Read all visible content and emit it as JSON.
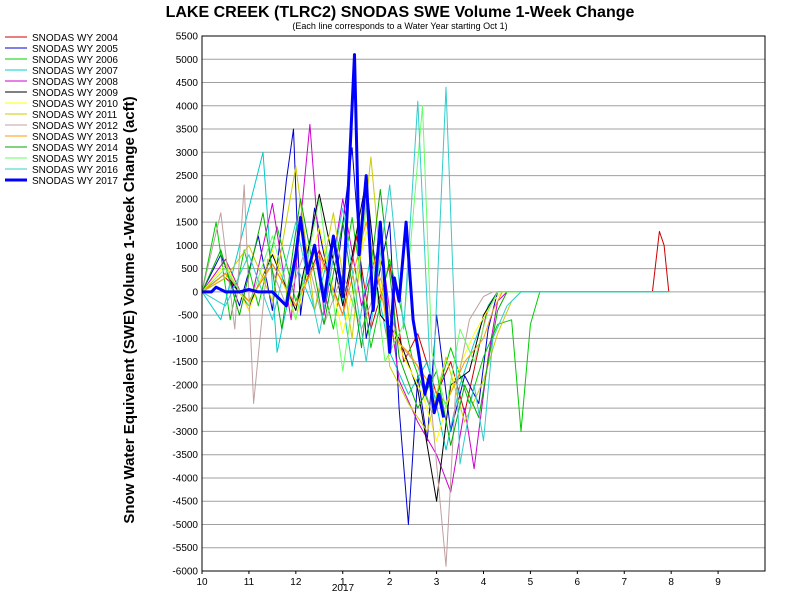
{
  "chart_data": {
    "type": "line",
    "title": "LAKE CREEK (TLRC2) SNODAS SWE Volume 1-Week Change",
    "subtitle": "(Each line corresponds to a Water Year starting Oct 1)",
    "ylabel": "Snow Water Equivalent (SWE) Volume 1-Week Change (acft)",
    "xlabel": "",
    "x_year_label": "2017",
    "ylim": [
      -6000,
      5500
    ],
    "yticks": [
      5500,
      5000,
      4500,
      4000,
      3500,
      3000,
      2500,
      2000,
      1500,
      1000,
      500,
      0,
      -500,
      -1000,
      -1500,
      -2000,
      -2500,
      -3000,
      -3500,
      -4000,
      -4500,
      -5000,
      -5500,
      -6000
    ],
    "x_tick_labels": [
      "10",
      "11",
      "12",
      "1",
      "2",
      "3",
      "4",
      "5",
      "6",
      "7",
      "8",
      "9"
    ],
    "grid": "horizontal",
    "legend_position": "left",
    "series": [
      {
        "name": "SNODAS WY 2004",
        "color": "#cc0000",
        "points": [
          [
            0,
            0
          ],
          [
            0.5,
            300
          ],
          [
            1,
            -200
          ],
          [
            1.5,
            600
          ],
          [
            2,
            -300
          ],
          [
            2.5,
            900
          ],
          [
            3,
            -500
          ],
          [
            3.3,
            1200
          ],
          [
            3.6,
            -800
          ],
          [
            4,
            600
          ],
          [
            4.3,
            -1500
          ],
          [
            4.6,
            -900
          ],
          [
            5,
            -2200
          ],
          [
            5.3,
            -1500
          ],
          [
            5.6,
            -2600
          ],
          [
            5.9,
            -1200
          ],
          [
            6.1,
            -300
          ],
          [
            6.3,
            0
          ],
          [
            7.5,
            0
          ],
          [
            9.6,
            0
          ],
          [
            9.75,
            1300
          ],
          [
            9.85,
            1000
          ],
          [
            9.95,
            0
          ]
        ]
      },
      {
        "name": "SNODAS WY 2005",
        "color": "#0000cc",
        "points": [
          [
            0,
            0
          ],
          [
            0.4,
            800
          ],
          [
            0.8,
            -300
          ],
          [
            1.2,
            1200
          ],
          [
            1.5,
            -400
          ],
          [
            1.8,
            2400
          ],
          [
            1.95,
            3500
          ],
          [
            2.1,
            -500
          ],
          [
            2.4,
            1800
          ],
          [
            2.8,
            -200
          ],
          [
            3.2,
            3100
          ],
          [
            3.5,
            -1000
          ],
          [
            4,
            1500
          ],
          [
            4.2,
            -2500
          ],
          [
            4.4,
            -5000
          ],
          [
            4.6,
            -1800
          ],
          [
            4.8,
            -3200
          ],
          [
            5,
            -500
          ],
          [
            5.3,
            -3000
          ],
          [
            5.6,
            -1800
          ],
          [
            5.9,
            -2400
          ],
          [
            6.1,
            -800
          ],
          [
            6.3,
            0
          ],
          [
            9.95,
            0
          ]
        ]
      },
      {
        "name": "SNODAS WY 2006",
        "color": "#00cc00",
        "points": [
          [
            0,
            0
          ],
          [
            0.3,
            1500
          ],
          [
            0.6,
            -600
          ],
          [
            0.9,
            900
          ],
          [
            1.2,
            -300
          ],
          [
            1.6,
            1400
          ],
          [
            2,
            -200
          ],
          [
            2.4,
            900
          ],
          [
            2.8,
            -800
          ],
          [
            3.2,
            1600
          ],
          [
            3.6,
            -1200
          ],
          [
            4,
            700
          ],
          [
            4.5,
            -1500
          ],
          [
            4.9,
            -2600
          ],
          [
            5.3,
            -1200
          ],
          [
            5.7,
            -2400
          ],
          [
            6,
            -1400
          ],
          [
            6.3,
            -700
          ],
          [
            6.6,
            -600
          ],
          [
            6.8,
            -3000
          ],
          [
            7,
            -700
          ],
          [
            7.2,
            0
          ],
          [
            9.95,
            0
          ]
        ]
      },
      {
        "name": "SNODAS WY 2007",
        "color": "#00cccc",
        "points": [
          [
            0,
            0
          ],
          [
            0.4,
            -600
          ],
          [
            0.8,
            1000
          ],
          [
            1.3,
            3000
          ],
          [
            1.6,
            -1300
          ],
          [
            2,
            600
          ],
          [
            2.4,
            -400
          ],
          [
            2.8,
            1200
          ],
          [
            3.2,
            -1600
          ],
          [
            3.6,
            800
          ],
          [
            4,
            -1300
          ],
          [
            4.4,
            -2200
          ],
          [
            4.8,
            -1500
          ],
          [
            5.2,
            -3400
          ],
          [
            5.5,
            -2000
          ],
          [
            5.8,
            -1100
          ],
          [
            6.1,
            -300
          ],
          [
            6.3,
            0
          ],
          [
            9.95,
            0
          ]
        ]
      },
      {
        "name": "SNODAS WY 2008",
        "color": "#cc00cc",
        "points": [
          [
            0,
            0
          ],
          [
            0.5,
            700
          ],
          [
            1,
            -400
          ],
          [
            1.5,
            1900
          ],
          [
            1.9,
            -600
          ],
          [
            2.3,
            3600
          ],
          [
            2.6,
            -500
          ],
          [
            3,
            2000
          ],
          [
            3.4,
            -300
          ],
          [
            3.8,
            1100
          ],
          [
            4.2,
            -1900
          ],
          [
            4.6,
            -2800
          ],
          [
            5,
            -3500
          ],
          [
            5.3,
            -4300
          ],
          [
            5.6,
            -2500
          ],
          [
            5.8,
            -3800
          ],
          [
            6.1,
            -1400
          ],
          [
            6.3,
            -200
          ],
          [
            6.5,
            0
          ],
          [
            9.95,
            0
          ]
        ]
      },
      {
        "name": "SNODAS WY 2009",
        "color": "#000000",
        "points": [
          [
            0,
            0
          ],
          [
            0.5,
            400
          ],
          [
            1,
            -300
          ],
          [
            1.5,
            800
          ],
          [
            2,
            -400
          ],
          [
            2.5,
            2100
          ],
          [
            3,
            -300
          ],
          [
            3.5,
            2400
          ],
          [
            3.8,
            -500
          ],
          [
            4.2,
            -1000
          ],
          [
            4.6,
            -2100
          ],
          [
            5,
            -4500
          ],
          [
            5.3,
            -2000
          ],
          [
            5.7,
            -1700
          ],
          [
            6,
            -500
          ],
          [
            6.3,
            0
          ],
          [
            9.95,
            0
          ]
        ]
      },
      {
        "name": "SNODAS WY 2010",
        "color": "#ffff00",
        "points": [
          [
            0,
            0
          ],
          [
            0.5,
            600
          ],
          [
            1,
            -400
          ],
          [
            1.5,
            900
          ],
          [
            2,
            -600
          ],
          [
            2.5,
            1400
          ],
          [
            3,
            -900
          ],
          [
            3.5,
            1300
          ],
          [
            4,
            -600
          ],
          [
            4.3,
            -1400
          ],
          [
            4.7,
            -2200
          ],
          [
            5,
            -3200
          ],
          [
            5.4,
            -1800
          ],
          [
            5.8,
            -900
          ],
          [
            6.2,
            -200
          ],
          [
            6.4,
            0
          ],
          [
            9.95,
            0
          ]
        ]
      },
      {
        "name": "SNODAS WY 2011",
        "color": "#cccc00",
        "points": [
          [
            0,
            0
          ],
          [
            0.5,
            300
          ],
          [
            1,
            1000
          ],
          [
            1.5,
            -200
          ],
          [
            2,
            2700
          ],
          [
            2.4,
            -400
          ],
          [
            2.8,
            1700
          ],
          [
            3.2,
            -1000
          ],
          [
            3.6,
            2900
          ],
          [
            4,
            -1600
          ],
          [
            4.4,
            -2400
          ],
          [
            4.8,
            -3000
          ],
          [
            5.2,
            -1400
          ],
          [
            5.6,
            -2800
          ],
          [
            6,
            -1900
          ],
          [
            6.3,
            -900
          ],
          [
            6.6,
            -200
          ],
          [
            6.8,
            0
          ],
          [
            9.95,
            0
          ]
        ]
      },
      {
        "name": "SNODAS WY 2012",
        "color": "#c0a0a0",
        "points": [
          [
            0,
            0
          ],
          [
            0.4,
            1700
          ],
          [
            0.7,
            -800
          ],
          [
            0.9,
            2300
          ],
          [
            1.1,
            -2400
          ],
          [
            1.4,
            700
          ],
          [
            1.8,
            -300
          ],
          [
            2.2,
            900
          ],
          [
            2.6,
            -700
          ],
          [
            3,
            400
          ],
          [
            3.4,
            -800
          ],
          [
            3.8,
            300
          ],
          [
            4.2,
            -1100
          ],
          [
            4.6,
            -1600
          ],
          [
            4.9,
            -2600
          ],
          [
            5.2,
            -5900
          ],
          [
            5.4,
            -2200
          ],
          [
            5.7,
            -600
          ],
          [
            6,
            -100
          ],
          [
            6.2,
            0
          ],
          [
            9.95,
            0
          ]
        ]
      },
      {
        "name": "SNODAS WY 2013",
        "color": "#ff9900",
        "points": [
          [
            0,
            0
          ],
          [
            0.5,
            400
          ],
          [
            1,
            -200
          ],
          [
            1.5,
            600
          ],
          [
            2,
            -300
          ],
          [
            2.5,
            800
          ],
          [
            3,
            -500
          ],
          [
            3.5,
            1500
          ],
          [
            4,
            -900
          ],
          [
            4.4,
            -1300
          ],
          [
            4.8,
            -1900
          ],
          [
            5.2,
            -2400
          ],
          [
            5.6,
            -1500
          ],
          [
            6,
            -1000
          ],
          [
            6.2,
            -400
          ],
          [
            6.4,
            0
          ],
          [
            9.95,
            0
          ]
        ]
      },
      {
        "name": "SNODAS WY 2014",
        "color": "#00aa00",
        "points": [
          [
            0,
            0
          ],
          [
            0.4,
            900
          ],
          [
            0.8,
            -500
          ],
          [
            1.3,
            1700
          ],
          [
            1.7,
            -800
          ],
          [
            2.1,
            2000
          ],
          [
            2.6,
            -700
          ],
          [
            3,
            1500
          ],
          [
            3.4,
            -1200
          ],
          [
            3.8,
            2200
          ],
          [
            4.2,
            -1400
          ],
          [
            4.6,
            -2500
          ],
          [
            5,
            -1700
          ],
          [
            5.3,
            -3300
          ],
          [
            5.6,
            -2000
          ],
          [
            5.9,
            -2700
          ],
          [
            6.1,
            -1500
          ],
          [
            6.3,
            -400
          ],
          [
            6.5,
            0
          ],
          [
            9.95,
            0
          ]
        ]
      },
      {
        "name": "SNODAS WY 2015",
        "color": "#66ff66",
        "points": [
          [
            0,
            0
          ],
          [
            0.5,
            500
          ],
          [
            1,
            -300
          ],
          [
            1.5,
            1200
          ],
          [
            2,
            -600
          ],
          [
            2.5,
            2000
          ],
          [
            3,
            -1700
          ],
          [
            3.5,
            1800
          ],
          [
            3.9,
            -1500
          ],
          [
            4.3,
            -700
          ],
          [
            4.7,
            4000
          ],
          [
            4.9,
            -1300
          ],
          [
            5.2,
            -2500
          ],
          [
            5.5,
            -800
          ],
          [
            5.8,
            -1500
          ],
          [
            6.1,
            -400
          ],
          [
            6.3,
            0
          ],
          [
            9.95,
            0
          ]
        ]
      },
      {
        "name": "SNODAS WY 2016",
        "color": "#33cccc",
        "points": [
          [
            0,
            0
          ],
          [
            0.5,
            -300
          ],
          [
            1,
            800
          ],
          [
            1.5,
            -600
          ],
          [
            2,
            1500
          ],
          [
            2.5,
            -900
          ],
          [
            3,
            1800
          ],
          [
            3.5,
            -1500
          ],
          [
            4,
            2300
          ],
          [
            4.3,
            -800
          ],
          [
            4.6,
            4100
          ],
          [
            4.9,
            -2500
          ],
          [
            5.2,
            4400
          ],
          [
            5.5,
            -3700
          ],
          [
            5.8,
            -2000
          ],
          [
            6,
            -3200
          ],
          [
            6.2,
            -1000
          ],
          [
            6.5,
            -300
          ],
          [
            6.8,
            0
          ],
          [
            9.95,
            0
          ]
        ]
      },
      {
        "name": "SNODAS WY 2017",
        "color": "#0000ff",
        "bold": true,
        "points": [
          [
            0,
            0
          ],
          [
            0.2,
            0
          ],
          [
            0.3,
            100
          ],
          [
            0.5,
            0
          ],
          [
            0.8,
            0
          ],
          [
            1,
            50
          ],
          [
            1.2,
            0
          ],
          [
            1.5,
            0
          ],
          [
            1.8,
            -300
          ],
          [
            2,
            800
          ],
          [
            2.1,
            1600
          ],
          [
            2.25,
            400
          ],
          [
            2.4,
            1000
          ],
          [
            2.6,
            -200
          ],
          [
            2.8,
            1200
          ],
          [
            3,
            -100
          ],
          [
            3.1,
            1800
          ],
          [
            3.25,
            5100
          ],
          [
            3.35,
            800
          ],
          [
            3.5,
            2500
          ],
          [
            3.65,
            -400
          ],
          [
            3.8,
            1500
          ],
          [
            4,
            -1300
          ],
          [
            4.1,
            300
          ],
          [
            4.2,
            -200
          ],
          [
            4.35,
            1500
          ],
          [
            4.5,
            -600
          ],
          [
            4.6,
            -1200
          ],
          [
            4.75,
            -2200
          ],
          [
            4.85,
            -1800
          ],
          [
            4.95,
            -2600
          ],
          [
            5.05,
            -2200
          ],
          [
            5.15,
            -2700
          ]
        ]
      }
    ]
  }
}
